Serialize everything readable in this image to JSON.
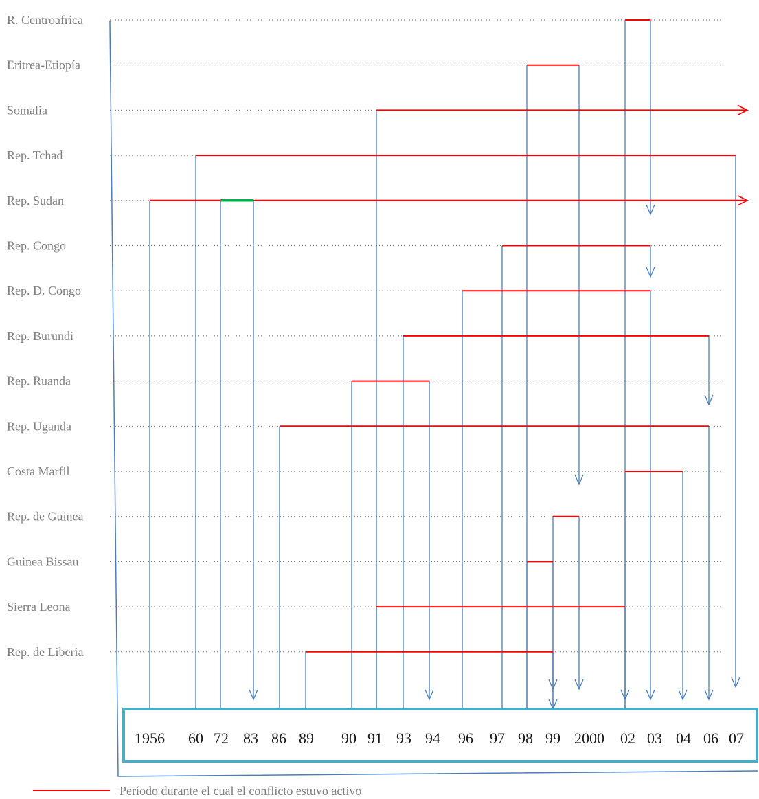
{
  "colors": {
    "active": "#ff0000",
    "highlight": "#00b050",
    "connector": "#4a7ebb",
    "axis_box": "#4bacc6",
    "labels": "#7f7f7f"
  },
  "countries": [
    "R. Centroafrica",
    "Eritrea-Etiopía",
    "Somalia",
    "Rep. Tchad",
    "Rep. Sudan",
    "Rep. Congo",
    "Rep. D. Congo",
    "Rep. Burundi",
    "Rep. Ruanda",
    "Rep. Uganda",
    "Costa  Marfil",
    "Rep. de Guinea",
    "Guinea Bissau",
    "Sierra Leona",
    "Rep. de Liberia"
  ],
  "years": [
    "1956",
    "60",
    "72",
    "83",
    "86",
    "89",
    "90",
    "91",
    "93",
    "94",
    "96",
    "97",
    "98",
    "99",
    "2000",
    "02",
    "03",
    "04",
    "06",
    "07"
  ],
  "conflicts": [
    {
      "country": "R. Centroafrica",
      "start": "02",
      "end": "03",
      "ongoing": false
    },
    {
      "country": "Eritrea-Etiopía",
      "start": "98",
      "end": "2000",
      "ongoing": false
    },
    {
      "country": "Somalia",
      "start": "91",
      "end": "",
      "ongoing": true
    },
    {
      "country": "Rep. Tchad",
      "start": "60",
      "end": "07",
      "ongoing": false
    },
    {
      "country": "Rep. Sudan",
      "start": "1956",
      "end": "",
      "ongoing": true,
      "highlight": [
        "72",
        "83"
      ]
    },
    {
      "country": "Rep. Congo",
      "start": "97",
      "end": "03",
      "ongoing": false
    },
    {
      "country": "Rep. D. Congo",
      "start": "96",
      "end": "03",
      "ongoing": false
    },
    {
      "country": "Rep. Burundi",
      "start": "93",
      "end": "06",
      "ongoing": false
    },
    {
      "country": "Rep. Ruanda",
      "start": "90",
      "end": "94",
      "ongoing": false
    },
    {
      "country": "Rep. Uganda",
      "start": "86",
      "end": "06",
      "ongoing": false
    },
    {
      "country": "Costa  Marfil",
      "start": "02",
      "end": "04",
      "ongoing": false
    },
    {
      "country": "Rep. de Guinea",
      "start": "99",
      "end": "2000",
      "ongoing": false
    },
    {
      "country": "Guinea Bissau",
      "start": "98",
      "end": "99",
      "ongoing": false
    },
    {
      "country": "Sierra Leona",
      "start": "91",
      "end": "02",
      "ongoing": false
    },
    {
      "country": "Rep. de Liberia",
      "start": "89",
      "end": "99",
      "ongoing": false
    }
  ],
  "legend": {
    "text": "Período durante el cual el conflicto estuvo activo"
  }
}
